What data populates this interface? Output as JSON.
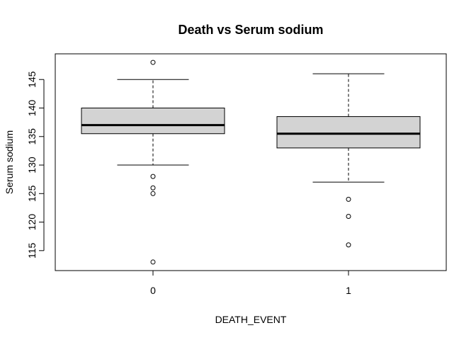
{
  "chart_data": {
    "type": "box",
    "title": "Death vs Serum sodium",
    "xlabel": "DEATH_EVENT",
    "ylabel": "Serum sodium",
    "categories": [
      "0",
      "1"
    ],
    "ylim": [
      111.5,
      149.5
    ],
    "yticks": [
      115,
      120,
      125,
      130,
      135,
      140,
      145
    ],
    "grid": false,
    "boxes": [
      {
        "category": "0",
        "whisker_low": 130,
        "q1": 135.5,
        "median": 137,
        "q3": 140,
        "whisker_high": 145,
        "outliers": [
          148,
          128,
          126,
          125,
          113
        ]
      },
      {
        "category": "1",
        "whisker_low": 127,
        "q1": 133,
        "median": 135.5,
        "q3": 138.5,
        "whisker_high": 146,
        "outliers": [
          124,
          121,
          116
        ]
      }
    ],
    "box_fill": "#d3d3d3"
  }
}
